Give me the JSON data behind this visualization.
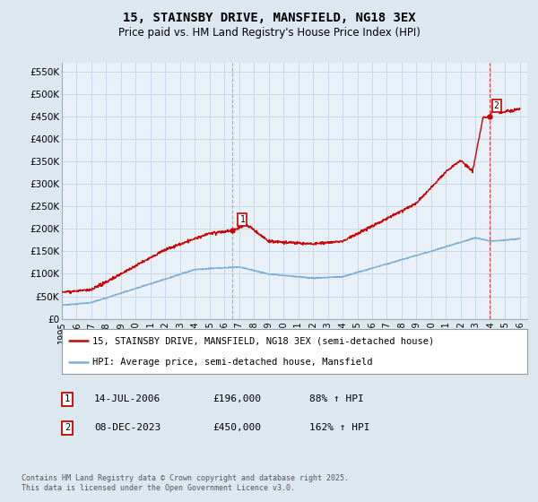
{
  "title": "15, STAINSBY DRIVE, MANSFIELD, NG18 3EX",
  "subtitle": "Price paid vs. HM Land Registry's House Price Index (HPI)",
  "ylim": [
    0,
    570000
  ],
  "yticks": [
    0,
    50000,
    100000,
    150000,
    200000,
    250000,
    300000,
    350000,
    400000,
    450000,
    500000,
    550000
  ],
  "ytick_labels": [
    "£0",
    "£50K",
    "£100K",
    "£150K",
    "£200K",
    "£250K",
    "£300K",
    "£350K",
    "£400K",
    "£450K",
    "£500K",
    "£550K"
  ],
  "xlim_start": 1995.0,
  "xlim_end": 2026.5,
  "xtick_years": [
    1995,
    1996,
    1997,
    1998,
    1999,
    2000,
    2001,
    2002,
    2003,
    2004,
    2005,
    2006,
    2007,
    2008,
    2009,
    2010,
    2011,
    2012,
    2013,
    2014,
    2015,
    2016,
    2017,
    2018,
    2019,
    2020,
    2021,
    2022,
    2023,
    2024,
    2025,
    2026
  ],
  "grid_color": "#c8d8ea",
  "background_color": "#dce8f0",
  "plot_background": "#e8f0f8",
  "sale1_x": 2006.54,
  "sale1_y": 196000,
  "sale1_label": "1",
  "sale2_x": 2023.94,
  "sale2_y": 450000,
  "sale2_label": "2",
  "line_color_red": "#cc0000",
  "line_color_blue": "#7aaed4",
  "legend_label_red": "15, STAINSBY DRIVE, MANSFIELD, NG18 3EX (semi-detached house)",
  "legend_label_blue": "HPI: Average price, semi-detached house, Mansfield",
  "annotation1_date": "14-JUL-2006",
  "annotation1_price": "£196,000",
  "annotation1_hpi": "88% ↑ HPI",
  "annotation2_date": "08-DEC-2023",
  "annotation2_price": "£450,000",
  "annotation2_hpi": "162% ↑ HPI",
  "footer": "Contains HM Land Registry data © Crown copyright and database right 2025.\nThis data is licensed under the Open Government Licence v3.0.",
  "title_fontsize": 10,
  "subtitle_fontsize": 8.5,
  "tick_fontsize": 7.5,
  "legend_fontsize": 7.5,
  "annotation_fontsize": 8,
  "footer_fontsize": 6
}
